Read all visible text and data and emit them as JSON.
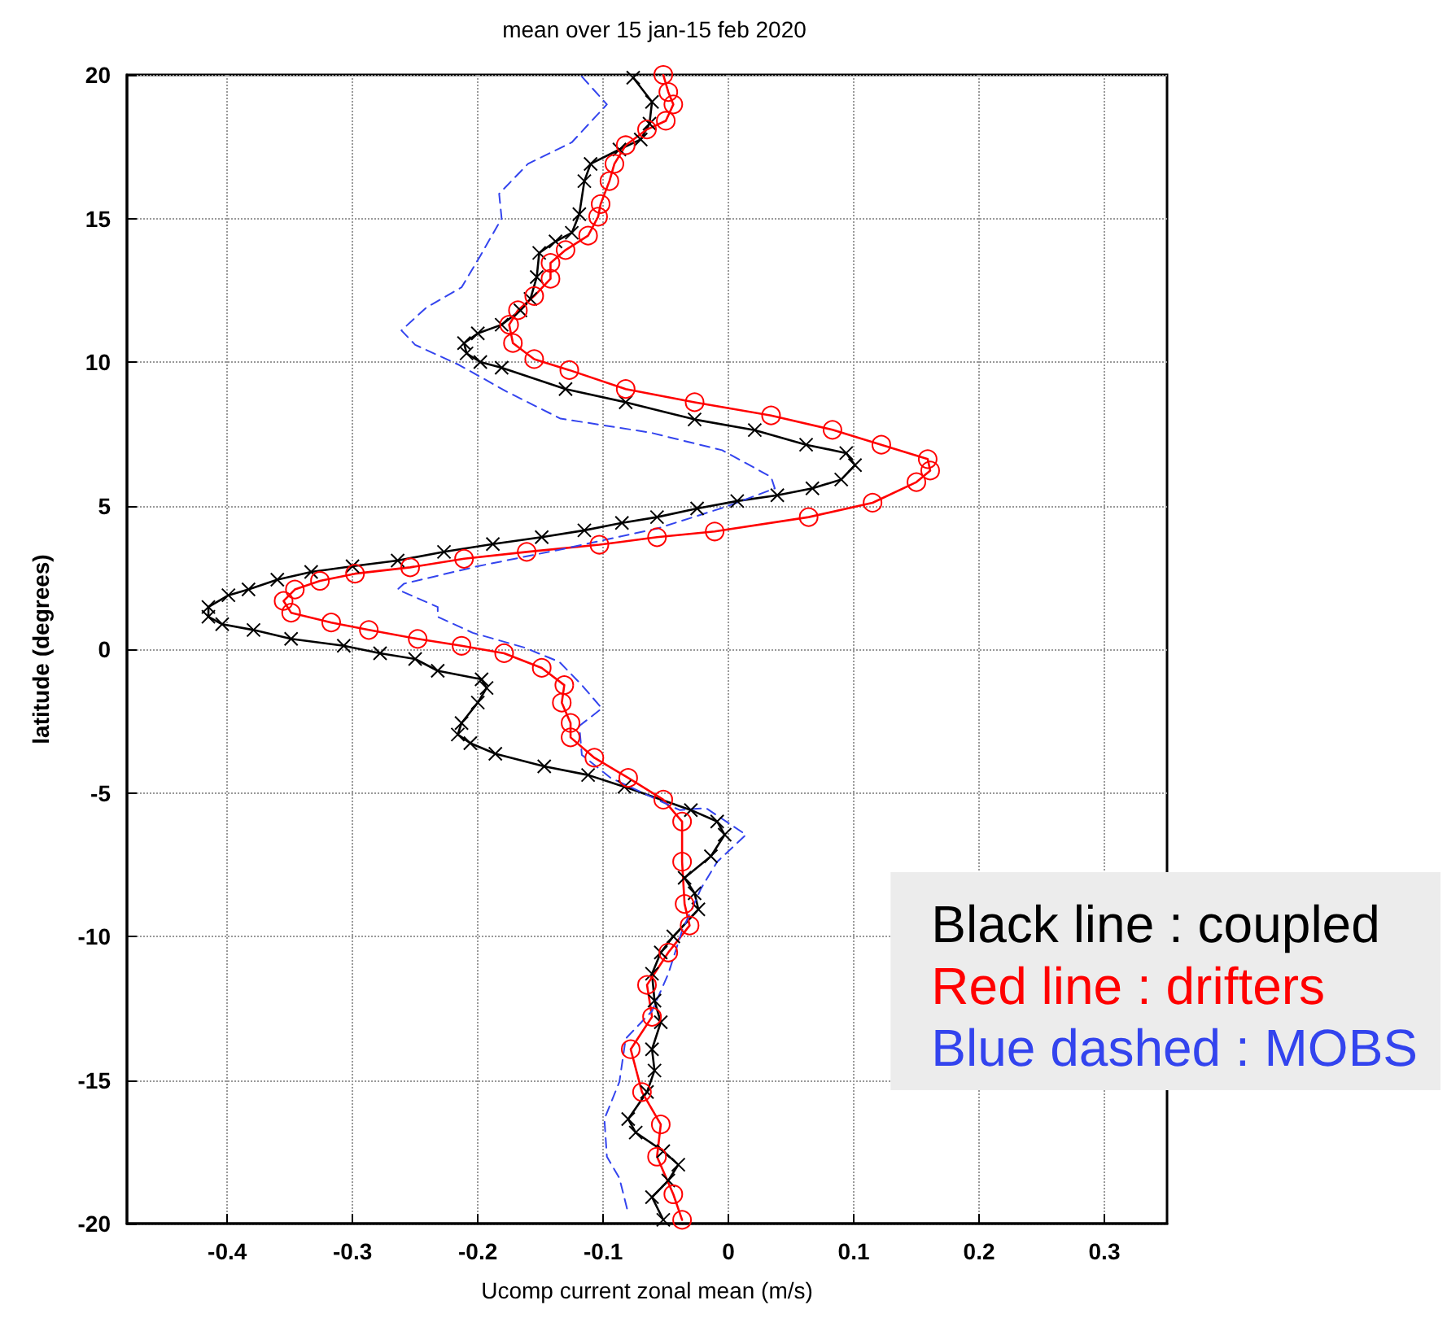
{
  "chart_data": {
    "type": "line",
    "title": "mean over 15 jan-15 feb 2020",
    "xlabel": "Ucomp current zonal mean (m/s)",
    "ylabel": "latitude (degrees)",
    "xlim": [
      -0.48,
      0.35
    ],
    "xticks": [
      -0.4,
      -0.3,
      -0.2,
      -0.1,
      0,
      0.1,
      0.2,
      0.3
    ],
    "ylim": [
      -20,
      20
    ],
    "yticks": [
      -20,
      -15,
      -10,
      -5,
      0,
      5,
      10,
      15,
      20
    ],
    "grid": true,
    "legend": "bottom right",
    "series": [
      {
        "name": "Black line : coupled",
        "color": "#000000",
        "marker": "cross",
        "line_style": "solid",
        "x": [
          -0.076,
          -0.061,
          -0.063,
          -0.07,
          -0.087,
          -0.11,
          -0.115,
          -0.119,
          -0.125,
          -0.138,
          -0.151,
          -0.153,
          -0.158,
          -0.166,
          -0.181,
          -0.2,
          -0.211,
          -0.209,
          -0.198,
          -0.181,
          -0.13,
          -0.082,
          -0.027,
          0.021,
          0.062,
          0.094,
          0.101,
          0.09,
          0.067,
          0.039,
          0.007,
          -0.025,
          -0.057,
          -0.085,
          -0.115,
          -0.149,
          -0.188,
          -0.227,
          -0.264,
          -0.3,
          -0.333,
          -0.36,
          -0.383,
          -0.399,
          -0.415,
          -0.415,
          -0.404,
          -0.379,
          -0.349,
          -0.307,
          -0.278,
          -0.25,
          -0.232,
          -0.197,
          -0.193,
          -0.2,
          -0.213,
          -0.216,
          -0.206,
          -0.186,
          -0.147,
          -0.112,
          -0.083,
          -0.03,
          -0.009,
          -0.003,
          -0.014,
          -0.035,
          -0.027,
          -0.024,
          -0.044,
          -0.054,
          -0.061,
          -0.059,
          -0.054,
          -0.061,
          -0.059,
          -0.065,
          -0.08,
          -0.074,
          -0.052,
          -0.04,
          -0.048,
          -0.061,
          -0.052
        ],
        "values": [
          19.9,
          19.06,
          18.3,
          17.75,
          17.4,
          16.9,
          16.3,
          15.15,
          14.5,
          14.2,
          13.8,
          12.96,
          12.2,
          11.8,
          11.3,
          11.0,
          10.66,
          10.3,
          10.0,
          9.8,
          9.06,
          8.6,
          8.0,
          7.63,
          7.12,
          6.83,
          6.41,
          5.91,
          5.6,
          5.36,
          5.16,
          4.9,
          4.6,
          4.4,
          4.14,
          3.9,
          3.66,
          3.39,
          3.09,
          2.89,
          2.69,
          2.42,
          2.08,
          1.88,
          1.47,
          1.13,
          0.87,
          0.67,
          0.36,
          0.12,
          -0.14,
          -0.34,
          -0.75,
          -1.05,
          -1.35,
          -1.86,
          -2.57,
          -2.97,
          -3.27,
          -3.64,
          -4.08,
          -4.38,
          -4.79,
          -5.6,
          -6.0,
          -6.46,
          -7.21,
          -7.96,
          -8.5,
          -9.06,
          -10.0,
          -10.56,
          -11.3,
          -12.24,
          -12.99,
          -13.93,
          -14.67,
          -15.42,
          -16.36,
          -16.83,
          -17.48,
          -17.95,
          -18.5,
          -19.08,
          -19.87
        ]
      },
      {
        "name": "Red line : drifters",
        "color": "#ff0000",
        "marker": "circle",
        "line_style": "solid",
        "x": [
          -0.052,
          -0.048,
          -0.044,
          -0.05,
          -0.065,
          -0.082,
          -0.091,
          -0.095,
          -0.102,
          -0.104,
          -0.112,
          -0.13,
          -0.142,
          -0.142,
          -0.155,
          -0.168,
          -0.175,
          -0.172,
          -0.155,
          -0.127,
          -0.082,
          -0.027,
          0.034,
          0.083,
          0.122,
          0.159,
          0.161,
          0.15,
          0.115,
          0.064,
          -0.011,
          -0.057,
          -0.103,
          -0.161,
          -0.211,
          -0.254,
          -0.298,
          -0.326,
          -0.346,
          -0.355,
          -0.349,
          -0.317,
          -0.287,
          -0.248,
          -0.213,
          -0.179,
          -0.149,
          -0.131,
          -0.133,
          -0.126,
          -0.126,
          -0.107,
          -0.08,
          -0.052,
          -0.037,
          -0.037,
          -0.035,
          -0.031,
          -0.048,
          -0.065,
          -0.061,
          -0.078,
          -0.069,
          -0.054,
          -0.057,
          -0.044,
          -0.037
        ],
        "values": [
          20,
          19.4,
          18.97,
          18.4,
          18.1,
          17.55,
          16.9,
          16.3,
          15.5,
          15.06,
          14.4,
          13.9,
          13.45,
          12.9,
          12.3,
          11.8,
          11.3,
          10.66,
          10.1,
          9.72,
          9.06,
          8.6,
          8.14,
          7.64,
          7.12,
          6.62,
          6.22,
          5.82,
          5.1,
          4.6,
          4.1,
          3.9,
          3.64,
          3.39,
          3.15,
          2.85,
          2.63,
          2.38,
          2.08,
          1.68,
          1.27,
          0.93,
          0.67,
          0.36,
          0.12,
          -0.14,
          -0.65,
          -1.25,
          -1.86,
          -2.57,
          -3.07,
          -3.78,
          -4.48,
          -5.24,
          -6.0,
          -7.4,
          -8.87,
          -9.62,
          -10.56,
          -11.69,
          -12.8,
          -13.93,
          -15.42,
          -16.55,
          -17.67,
          -18.98,
          -19.87
        ]
      },
      {
        "name": "Blue dashed : MOBS",
        "color": "#3344ee",
        "marker": "none",
        "line_style": "dashed",
        "x": [
          -0.117,
          -0.097,
          -0.125,
          -0.16,
          -0.183,
          -0.181,
          -0.198,
          -0.213,
          -0.241,
          -0.261,
          -0.25,
          -0.215,
          -0.177,
          -0.134,
          -0.062,
          -0.005,
          0.034,
          0.037,
          -0.002,
          -0.057,
          -0.131,
          -0.2,
          -0.259,
          -0.264,
          -0.232,
          -0.232,
          -0.204,
          -0.163,
          -0.135,
          -0.117,
          -0.101,
          -0.119,
          -0.117,
          -0.094,
          -0.039,
          -0.018,
          0.014,
          -0.009,
          -0.022,
          -0.037,
          -0.048,
          -0.061,
          -0.082,
          -0.087,
          -0.099,
          -0.097,
          -0.087,
          -0.08
        ],
        "values": [
          19.94,
          18.97,
          17.65,
          16.9,
          15.86,
          15.0,
          13.7,
          12.6,
          11.9,
          11.1,
          10.6,
          9.9,
          8.97,
          8.03,
          7.54,
          6.93,
          6.0,
          5.6,
          4.96,
          4.2,
          3.5,
          2.89,
          2.28,
          2.08,
          1.47,
          1.13,
          0.57,
          0.06,
          -0.44,
          -1.25,
          -2.06,
          -2.67,
          -3.68,
          -4.48,
          -5.6,
          -5.53,
          -6.46,
          -7.4,
          -8.34,
          -9.8,
          -11.3,
          -12.6,
          -13.56,
          -15.06,
          -16.36,
          -17.67,
          -18.42,
          -19.64
        ]
      }
    ]
  }
}
